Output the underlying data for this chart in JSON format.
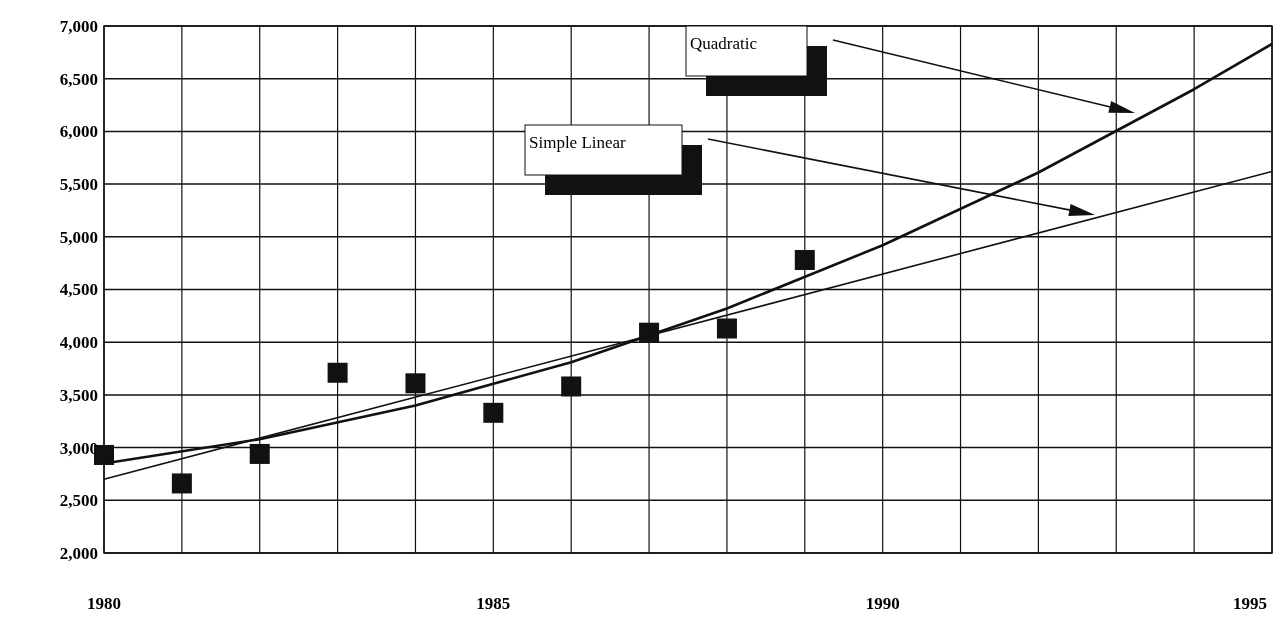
{
  "chart_data": {
    "type": "scatter",
    "grid": true,
    "xlim": [
      1980,
      1995
    ],
    "xticks": [
      1980,
      {
        "value": 1981,
        "label": null
      },
      {
        "value": 1982,
        "label": null
      },
      {
        "value": 1983,
        "label": null
      },
      {
        "value": 1984,
        "label": null
      },
      1985,
      {
        "value": 1986,
        "label": null
      },
      {
        "value": 1987,
        "label": null
      },
      {
        "value": 1988,
        "label": null
      },
      {
        "value": 1989,
        "label": null
      },
      1990,
      {
        "value": 1991,
        "label": null
      },
      {
        "value": 1992,
        "label": null
      },
      {
        "value": 1993,
        "label": null
      },
      {
        "value": 1994,
        "label": null
      },
      1995
    ],
    "ylim": [
      2000,
      7000
    ],
    "yticks": [
      {
        "value": 2000,
        "label": "2,000"
      },
      {
        "value": 2500,
        "label": "2,500"
      },
      {
        "value": 3000,
        "label": "3,000"
      },
      {
        "value": 3500,
        "label": "3,500"
      },
      {
        "value": 4000,
        "label": "4,000"
      },
      {
        "value": 4500,
        "label": "4,500"
      },
      {
        "value": 5000,
        "label": "5,000"
      },
      {
        "value": 5500,
        "label": "5,500"
      },
      {
        "value": 6000,
        "label": "6,000"
      },
      {
        "value": 6500,
        "label": "6,500"
      },
      {
        "value": 7000,
        "label": "7,000"
      }
    ],
    "series": [
      {
        "marker": "square",
        "color": "#111111",
        "x": [
          1980,
          1981,
          1982,
          1983,
          1984,
          1985,
          1986,
          1987,
          1988,
          1989
        ],
        "values": [
          2930,
          2660,
          2940,
          3710,
          3610,
          3330,
          3580,
          4090,
          4130,
          4780
        ]
      },
      {
        "type": "line",
        "color": "#111111",
        "x": [
          1980,
          1995
        ],
        "values": [
          2700,
          5620
        ]
      },
      {
        "type": "line",
        "color": "#111111",
        "x": [
          1980,
          1982,
          1984,
          1986,
          1988,
          1990,
          1992,
          1994,
          1995
        ],
        "values": [
          2850,
          3080,
          3400,
          3810,
          4320,
          4920,
          5610,
          6400,
          6830
        ]
      }
    ],
    "annotations": [
      "Quadratic",
      "Simple Linear"
    ]
  }
}
